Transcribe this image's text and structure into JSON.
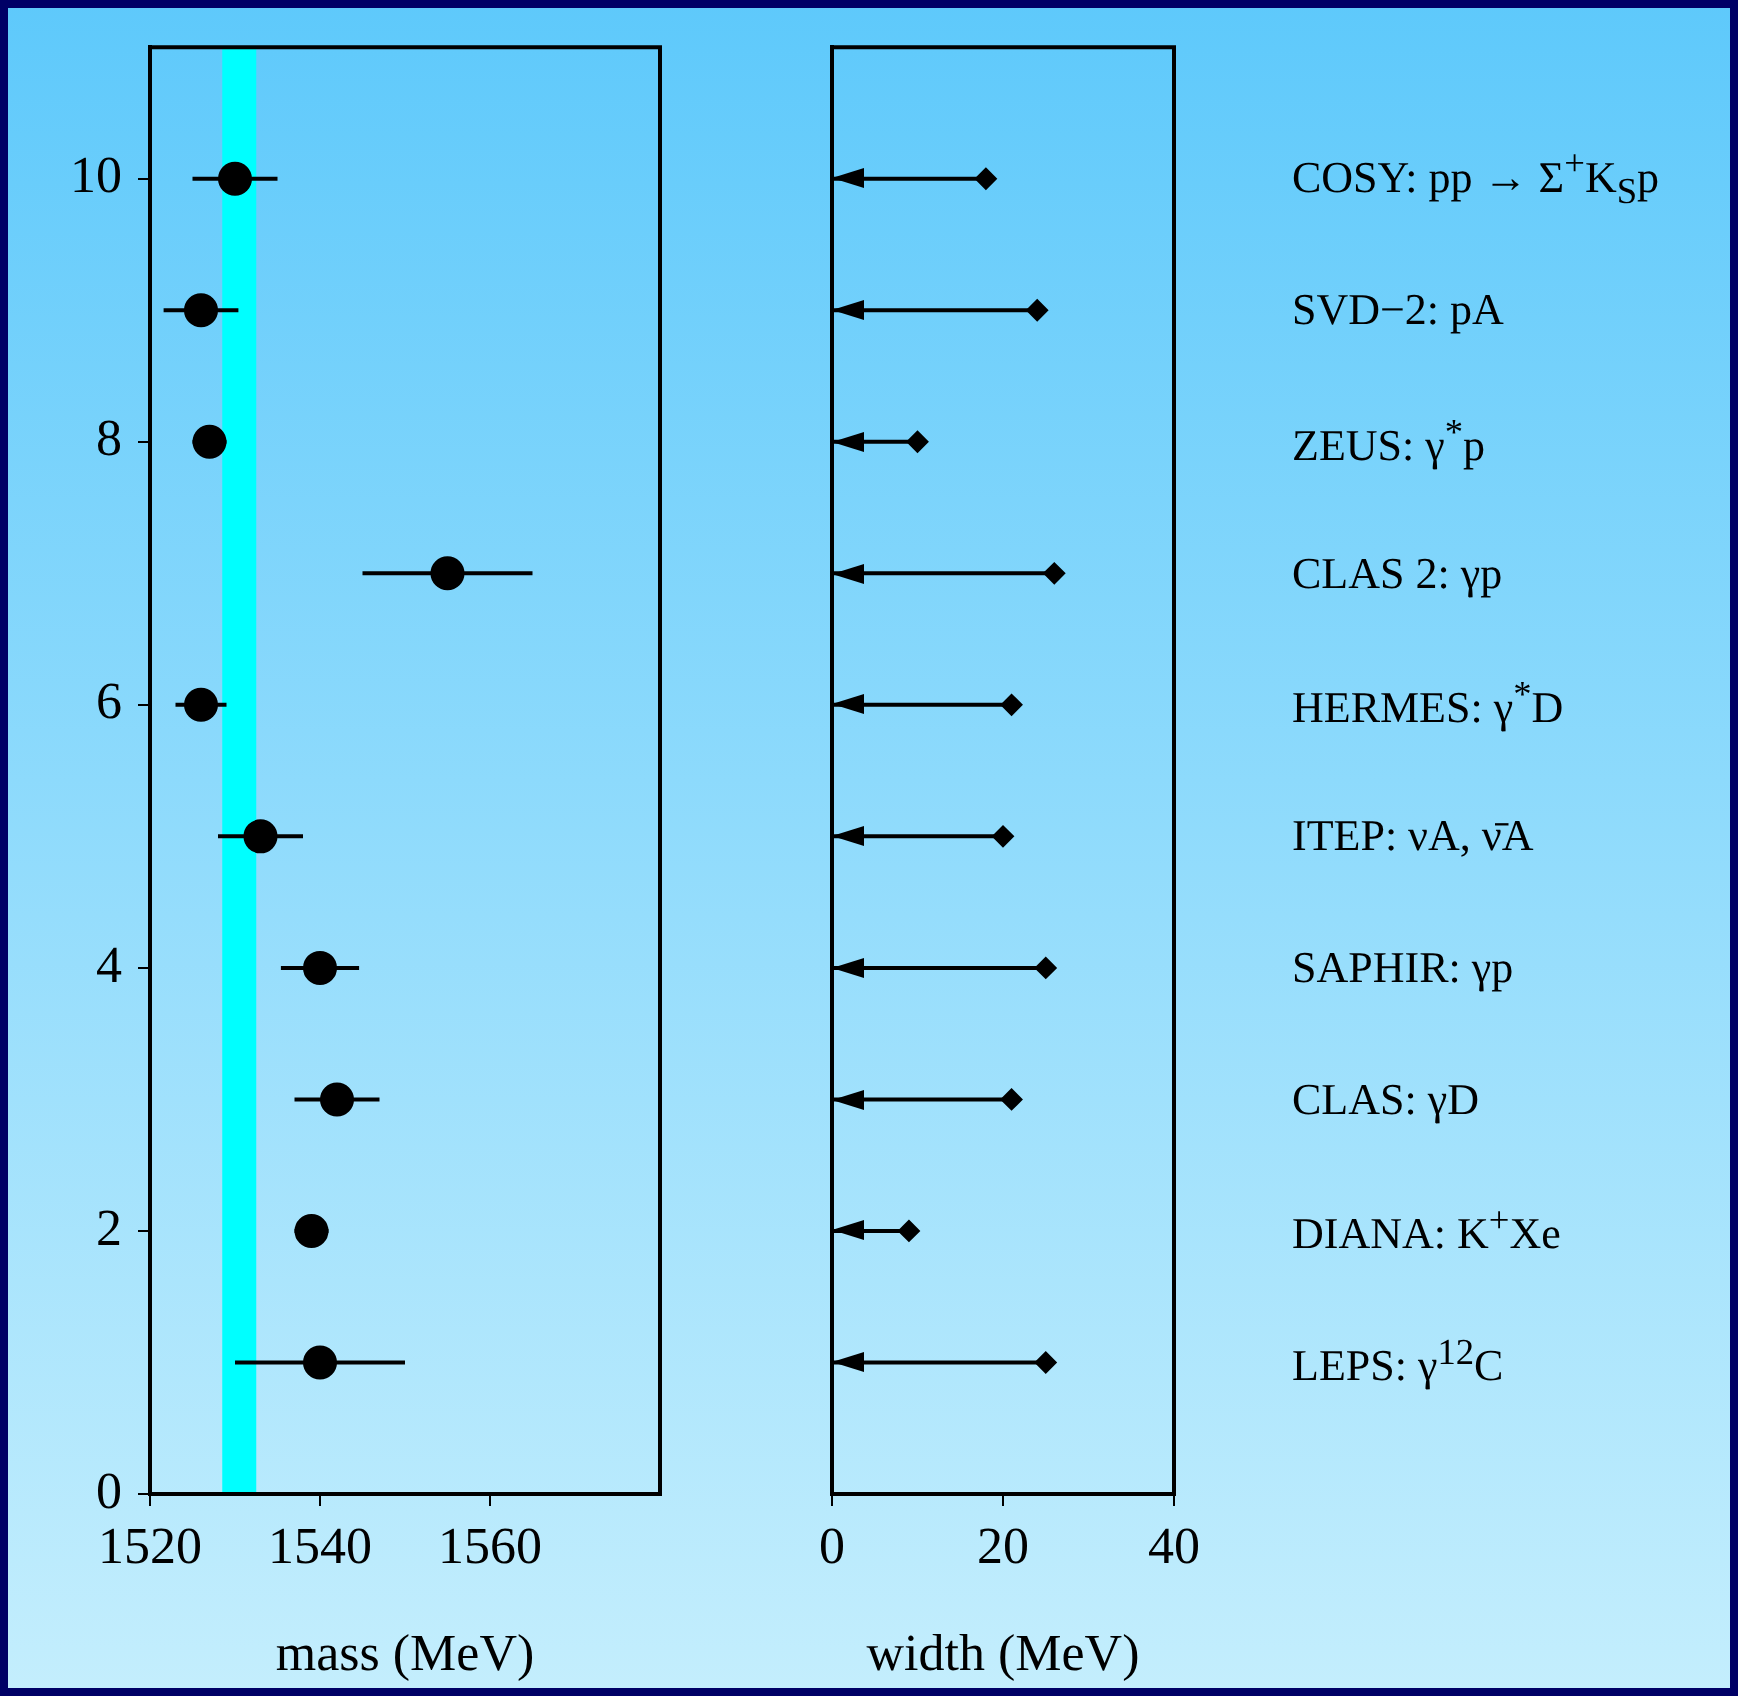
{
  "chart_data": [
    {
      "type": "scatter",
      "xlabel": "mass (MeV)",
      "x": [
        1540,
        1539,
        1542,
        1540,
        1533,
        1526,
        1555,
        1527,
        1526,
        1530
      ],
      "values": [
        1,
        2,
        3,
        4,
        5,
        6,
        7,
        8,
        9,
        10
      ],
      "xerrors": [
        10,
        2,
        5,
        4.6,
        5,
        3,
        10,
        2,
        4.4,
        5
      ],
      "color": "#000000",
      "marker": "circle",
      "xlim": [
        1520,
        1580
      ],
      "xticks": [
        1520,
        1540,
        1560
      ],
      "ylim": [
        0,
        11
      ],
      "yticks": [
        0,
        2,
        4,
        6,
        8,
        10
      ],
      "grid": false,
      "bands": [
        {
          "axis": "x",
          "from": 1528.5,
          "to": 1532.5,
          "color": "#00ffff"
        }
      ]
    },
    {
      "type": "scatter",
      "xlabel": "width (MeV)",
      "x": [
        25,
        9,
        21,
        25,
        20,
        21,
        26,
        10,
        24,
        18
      ],
      "values": [
        1,
        2,
        3,
        4,
        5,
        6,
        7,
        8,
        9,
        10
      ],
      "xerrors": [
        [
          25,
          0
        ],
        [
          9,
          0
        ],
        [
          21,
          0
        ],
        [
          25,
          0
        ],
        [
          20,
          0
        ],
        [
          21,
          0
        ],
        [
          26,
          0
        ],
        [
          10,
          0
        ],
        [
          24,
          0
        ],
        [
          18,
          0
        ]
      ],
      "color": "#000000",
      "marker": "diamond",
      "xlim": [
        0,
        40
      ],
      "xticks": [
        0,
        20,
        40
      ],
      "ylim": [
        0,
        11
      ],
      "tick_labels": "x",
      "grid": false,
      "annotations": [
        "LEPS: γ$^{12}$C",
        "DIANA: K$^{+}$Xe",
        "CLAS: γD",
        "SAPHIR: γp",
        "ITEP: νA, ν̄A",
        "HERMES: γ$^{*}$D",
        "CLAS 2: γp",
        "ZEUS: γ$^{*}$p",
        "SVD−2: pA",
        "COSY: pp → Σ$^{+}$K$_{S}$p"
      ]
    }
  ]
}
